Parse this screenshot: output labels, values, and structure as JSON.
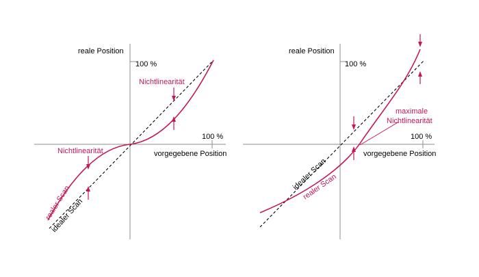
{
  "colors": {
    "real_scan": "#c2185b",
    "ideal_scan": "#000000",
    "axis": "#8c8c8c"
  },
  "left_diagram": {
    "y_axis_label": "reale Position",
    "y_100": "100 %",
    "x_axis_label": "vorgegebene Position",
    "x_100": "100 %",
    "annotation_top": "Nichtlinearität",
    "annotation_bottom": "Nichtlinearität",
    "real_curve_label": "realer Scan",
    "ideal_line_label": "idealer Scan"
  },
  "right_diagram": {
    "y_axis_label": "reale Position",
    "y_100": "100 %",
    "x_axis_label": "vorgegebene Position",
    "x_100": "100 %",
    "annotation_line1": "maximale",
    "annotation_line2": "Nichtlinearität",
    "ideal_line_label": "idealer Scan",
    "real_curve_label": "realer Scan"
  }
}
